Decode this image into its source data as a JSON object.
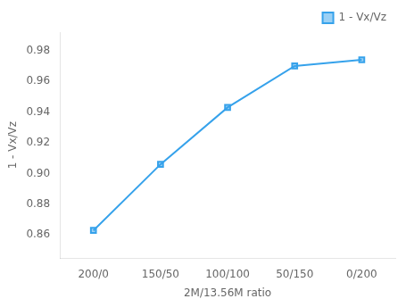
{
  "chart_data": {
    "type": "line",
    "categories": [
      "200/0",
      "150/50",
      "100/100",
      "50/150",
      "0/200"
    ],
    "series": [
      {
        "name": "1 - Vx/Vz",
        "values": [
          0.863,
          0.906,
          0.943,
          0.97,
          0.974
        ],
        "marker": "square"
      }
    ],
    "x_label": "2M/13.56M ratio",
    "y_label": "1 - Vx/Vz",
    "ylim": [
      0.845,
      0.992
    ],
    "yticks": [
      0.86,
      0.88,
      {
        "value": 0.9,
        "label": "0.90"
      },
      0.92,
      0.94,
      0.96,
      0.98
    ],
    "grid": false,
    "legend": "upper right"
  }
}
